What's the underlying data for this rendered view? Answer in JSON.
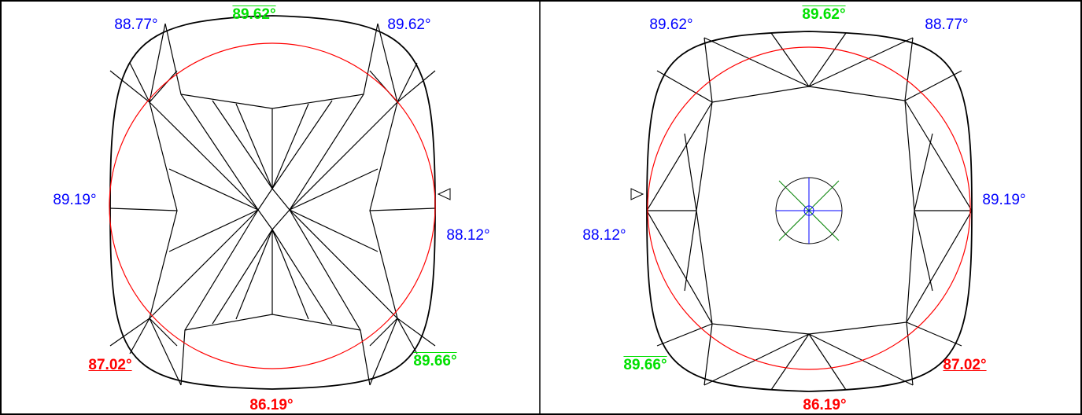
{
  "panels": [
    {
      "labels": [
        "88.77°",
        "89.62°",
        "89.62°",
        "89.19°",
        "88.12°",
        "87.02°",
        "89.66°",
        "86.19°"
      ]
    },
    {
      "labels": [
        "89.62°",
        "89.62°",
        "88.77°",
        "89.19°",
        "88.12°",
        "89.66°",
        "87.02°",
        "86.19°"
      ]
    }
  ]
}
